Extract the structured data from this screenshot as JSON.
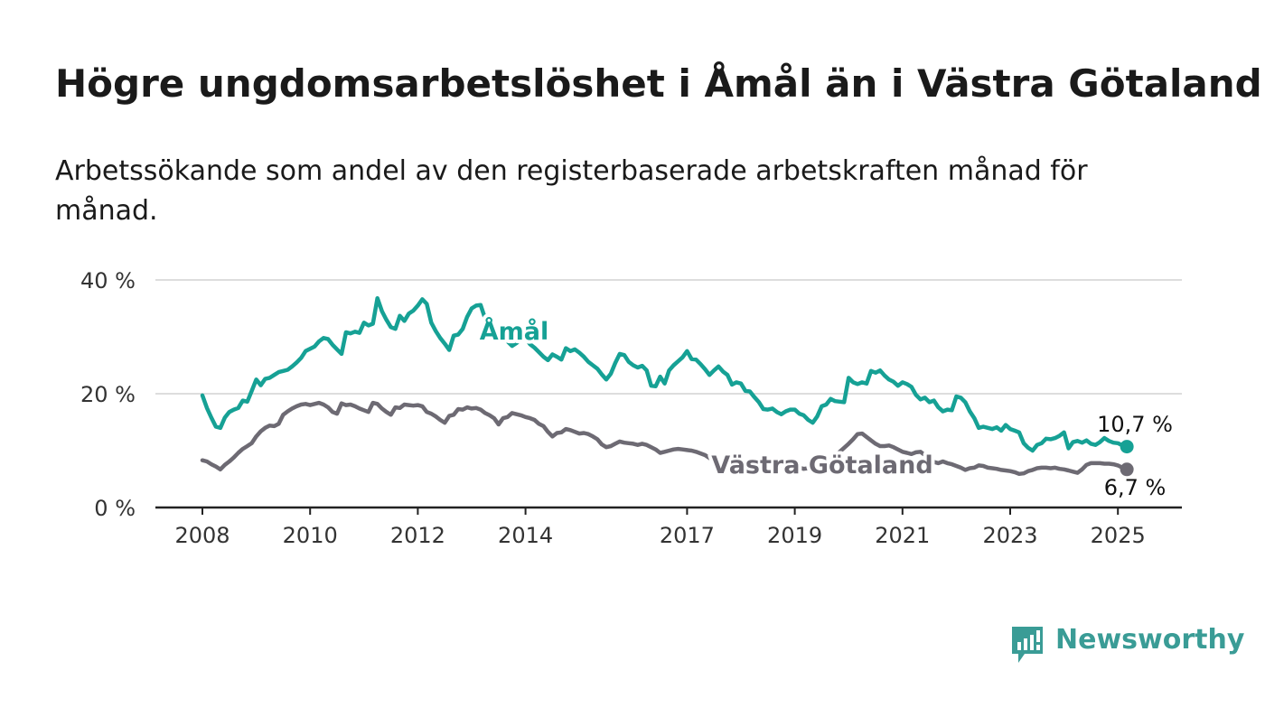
{
  "title": "Högre ungdomsarbetslöshet i Åmål än i Västra Götaland",
  "subtitle": "Arbetssökande som andel av den registerbaserade arbetskraften månad för månad.",
  "brand": {
    "name": "Newsworthy",
    "icon": "newsworthy-logo-icon"
  },
  "colors": {
    "amal": "#16a195",
    "vg": "#6d6a73",
    "grid": "#dddddd",
    "axis": "#222222"
  },
  "chart_data": {
    "type": "line",
    "ylim": [
      0,
      40
    ],
    "y_ticks": [
      0,
      20,
      40
    ],
    "y_tick_labels": [
      "0 %",
      "20 %",
      "40 %"
    ],
    "x_ticks": [
      2008,
      2010,
      2012,
      2014,
      2017,
      2019,
      2021,
      2023,
      2025
    ],
    "x_tick_labels": [
      "2008",
      "2010",
      "2012",
      "2014",
      "2017",
      "2019",
      "2021",
      "2023",
      "2025"
    ],
    "x_start": "2008-01",
    "x_end": "2025-03",
    "frequency": "monthly",
    "grid": true,
    "series": [
      {
        "name": "Åmål",
        "color": "#16a195",
        "last_value_label": "10,7 %",
        "values": [
          19.7,
          17.5,
          15.8,
          14.2,
          14.0,
          15.8,
          16.8,
          17.2,
          17.5,
          18.8,
          18.6,
          20.5,
          22.5,
          21.5,
          22.6,
          22.8,
          23.3,
          23.8,
          24.0,
          24.2,
          24.8,
          25.5,
          26.3,
          27.5,
          27.9,
          28.3,
          29.2,
          29.8,
          29.6,
          28.6,
          27.8,
          27.0,
          30.8,
          30.6,
          30.9,
          30.7,
          32.5,
          32.0,
          32.3,
          36.8,
          34.5,
          33.0,
          31.7,
          31.4,
          33.7,
          32.8,
          34.1,
          34.6,
          35.5,
          36.6,
          35.8,
          32.5,
          31.0,
          29.8,
          28.8,
          27.7,
          30.2,
          30.4,
          31.4,
          33.5,
          35.0,
          35.5,
          35.6,
          33.2,
          32.6,
          31.3,
          30.2,
          29.7,
          29.2,
          28.4,
          28.9,
          29.7,
          29.8,
          28.7,
          28.1,
          27.3,
          26.5,
          25.9,
          26.9,
          26.5,
          26.0,
          28.0,
          27.5,
          27.8,
          27.2,
          26.5,
          25.6,
          25.0,
          24.4,
          23.4,
          22.5,
          23.5,
          25.4,
          27.0,
          26.8,
          25.6,
          25.0,
          24.6,
          24.9,
          24.1,
          21.4,
          21.3,
          23.0,
          21.8,
          24.1,
          25.0,
          25.7,
          26.4,
          27.5,
          26.1,
          26.0,
          25.2,
          24.3,
          23.3,
          24.1,
          24.8,
          23.9,
          23.3,
          21.6,
          22.0,
          21.8,
          20.5,
          20.4,
          19.4,
          18.5,
          17.3,
          17.2,
          17.4,
          16.8,
          16.4,
          16.9,
          17.2,
          17.2,
          16.5,
          16.2,
          15.4,
          14.9,
          16.0,
          17.8,
          18.1,
          19.1,
          18.7,
          18.6,
          18.5,
          22.8,
          22.0,
          21.7,
          22.0,
          21.8,
          24.0,
          23.7,
          24.1,
          23.2,
          22.5,
          22.1,
          21.4,
          22.0,
          21.7,
          21.2,
          19.8,
          19.0,
          19.3,
          18.5,
          18.8,
          17.6,
          16.9,
          17.2,
          17.1,
          19.5,
          19.3,
          18.5,
          16.9,
          15.7,
          14.0,
          14.2,
          14.0,
          13.8,
          14.1,
          13.5,
          14.5,
          13.8,
          13.5,
          13.2,
          11.3,
          10.5,
          10.0,
          11.0,
          11.3,
          12.1,
          12.0,
          12.2,
          12.6,
          13.2,
          10.4,
          11.5,
          11.7,
          11.4,
          11.8,
          11.2,
          11.0,
          11.5,
          12.2,
          11.7,
          11.4,
          11.3,
          10.9,
          10.7
        ]
      },
      {
        "name": "Västra Götaland",
        "color": "#6d6a73",
        "last_value_label": "6,7 %",
        "values": [
          8.3,
          8.1,
          7.6,
          7.2,
          6.7,
          7.5,
          8.1,
          8.8,
          9.6,
          10.3,
          10.8,
          11.3,
          12.5,
          13.4,
          14.0,
          14.4,
          14.3,
          14.7,
          16.3,
          16.9,
          17.4,
          17.8,
          18.1,
          18.2,
          18.0,
          18.2,
          18.4,
          18.1,
          17.6,
          16.8,
          16.5,
          18.3,
          18.0,
          18.1,
          17.8,
          17.4,
          17.1,
          16.8,
          18.4,
          18.2,
          17.4,
          16.8,
          16.3,
          17.6,
          17.5,
          18.1,
          18.0,
          17.9,
          18.0,
          17.8,
          16.8,
          16.5,
          16.0,
          15.4,
          14.9,
          16.1,
          16.3,
          17.3,
          17.2,
          17.6,
          17.4,
          17.5,
          17.2,
          16.6,
          16.2,
          15.7,
          14.6,
          15.7,
          15.9,
          16.6,
          16.4,
          16.2,
          15.9,
          15.7,
          15.4,
          14.7,
          14.3,
          13.3,
          12.5,
          13.1,
          13.2,
          13.8,
          13.6,
          13.3,
          13.0,
          13.1,
          12.9,
          12.5,
          12.0,
          11.1,
          10.6,
          10.8,
          11.2,
          11.6,
          11.4,
          11.3,
          11.2,
          11.0,
          11.2,
          11.0,
          10.6,
          10.2,
          9.6,
          9.8,
          10.0,
          10.2,
          10.3,
          10.2,
          10.1,
          10.0,
          9.8,
          9.5,
          9.2,
          8.7,
          8.3,
          7.9,
          7.8,
          7.9,
          7.8,
          7.6,
          7.4,
          7.3,
          7.2,
          7.1,
          7.2,
          7.4,
          7.7,
          7.8,
          7.6,
          7.3,
          7.4,
          7.4,
          7.2,
          7.0,
          6.8,
          6.9,
          7.2,
          7.4,
          7.8,
          7.9,
          8.4,
          8.9,
          9.8,
          10.5,
          11.2,
          12.0,
          12.9,
          13.0,
          12.4,
          11.8,
          11.2,
          10.8,
          10.8,
          10.9,
          10.6,
          10.2,
          9.8,
          9.6,
          9.4,
          9.7,
          9.8,
          9.2,
          8.6,
          8.0,
          7.8,
          8.1,
          7.8,
          7.6,
          7.3,
          7.0,
          6.6,
          6.9,
          7.0,
          7.4,
          7.3,
          7.0,
          6.9,
          6.8,
          6.6,
          6.5,
          6.4,
          6.2,
          5.9,
          6.0,
          6.4,
          6.6,
          6.9,
          7.0,
          7.0,
          6.9,
          7.0,
          6.8,
          6.7,
          6.5,
          6.3,
          6.1,
          6.7,
          7.5,
          7.8,
          7.8,
          7.8,
          7.7,
          7.7,
          7.6,
          7.4,
          7.0,
          6.7
        ]
      }
    ]
  }
}
